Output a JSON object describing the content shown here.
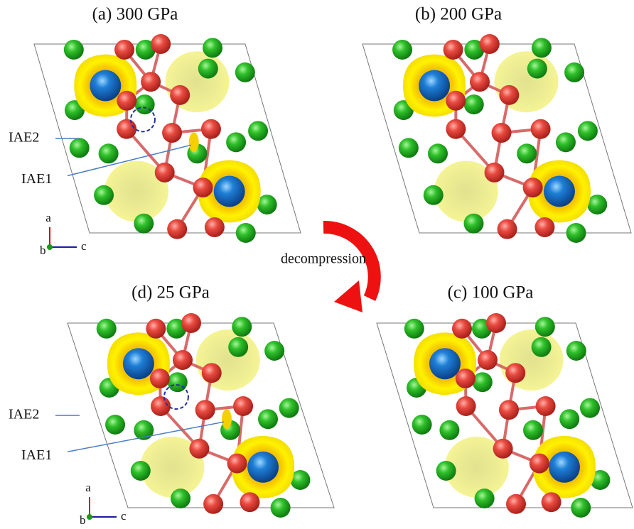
{
  "panels": [
    {
      "title": "(a)  300 GPa",
      "iae2": "IAE2",
      "iae1": "IAE1",
      "axes": [
        "a",
        "b",
        "c"
      ]
    },
    {
      "title": "(b)  200 GPa"
    },
    {
      "title": "(c) 100 GPa"
    },
    {
      "title": "(d) 25 GPa",
      "iae2": "IAE2",
      "iae1": "IAE1",
      "axes": [
        "a",
        "b",
        "c"
      ]
    }
  ],
  "arrow_label": "decompression"
}
